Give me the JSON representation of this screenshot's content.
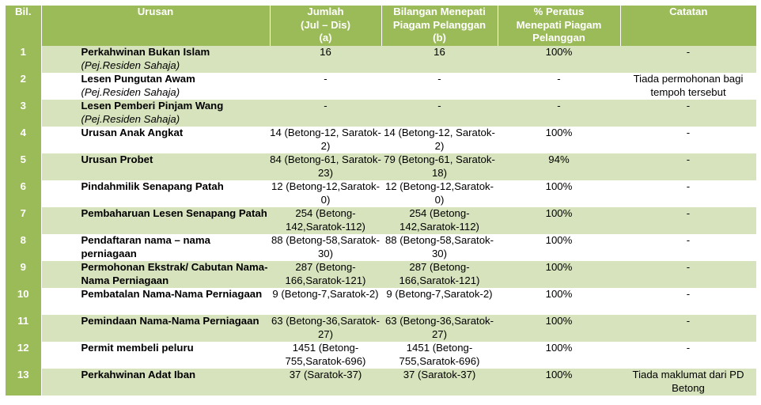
{
  "header": {
    "bil": "Bil.",
    "urusan": "Urusan",
    "jumlah": [
      "Jumlah",
      "(Jul – Dis)",
      "(a)"
    ],
    "bilangan": [
      "Bilangan Menepati",
      "Piagam Pelanggan",
      "(b)"
    ],
    "peratus": [
      "% Peratus",
      "Menepati Piagam",
      "Pelanggan"
    ],
    "catatan": "Catatan"
  },
  "rows": [
    {
      "bil": "1",
      "name": "Perkahwinan Bukan Islam",
      "sub": "(Pej.Residen Sahaja)",
      "jumlah": "16",
      "bilangan": "16",
      "peratus": "100%",
      "catatan": "-"
    },
    {
      "bil": "2",
      "name": "Lesen Pungutan Awam",
      "sub": "(Pej.Residen Sahaja)",
      "jumlah": "-",
      "bilangan": "-",
      "peratus": "-",
      "catatan": "Tiada permohonan bagi tempoh tersebut"
    },
    {
      "bil": "3",
      "name": "Lesen Pemberi Pinjam Wang",
      "sub": "(Pej.Residen Sahaja)",
      "jumlah": "-",
      "bilangan": "-",
      "peratus": "-",
      "catatan": "-"
    },
    {
      "bil": "4",
      "name": "Urusan Anak Angkat",
      "sub": "",
      "jumlah": "14 (Betong-12, Saratok-2)",
      "bilangan": "14 (Betong-12, Saratok-2)",
      "peratus": "100%",
      "catatan": "-"
    },
    {
      "bil": "5",
      "name": "Urusan Probet",
      "sub": "",
      "jumlah": "84 (Betong-61, Saratok-23)",
      "bilangan": "79 (Betong-61, Saratok-18)",
      "peratus": "94%",
      "catatan": "-"
    },
    {
      "bil": "6",
      "name": "Pindahmilik Senapang Patah",
      "sub": "",
      "jumlah": "12 (Betong-12,Saratok-0)",
      "bilangan": "12 (Betong-12,Saratok-0)",
      "peratus": "100%",
      "catatan": "-"
    },
    {
      "bil": "7",
      "name": "Pembaharuan Lesen Senapang Patah",
      "sub": "",
      "jumlah": "254 (Betong-142,Saratok-112)",
      "bilangan": "254 (Betong-142,Saratok-112)",
      "peratus": "100%",
      "catatan": "-"
    },
    {
      "bil": "8",
      "name": "Pendaftaran nama – nama perniagaan",
      "sub": "",
      "jumlah": "88 (Betong-58,Saratok-30)",
      "bilangan": "88 (Betong-58,Saratok-30)",
      "peratus": "100%",
      "catatan": "-"
    },
    {
      "bil": "9",
      "name": "Permohonan Ekstrak/ Cabutan Nama-Nama Perniagaan",
      "sub": "",
      "jumlah": "287 (Betong-166,Saratok-121)",
      "bilangan": "287 (Betong-166,Saratok-121)",
      "peratus": "100%",
      "catatan": "-"
    },
    {
      "bil": "10",
      "name": "Pembatalan Nama-Nama Perniagaan",
      "sub": "",
      "jumlah": "9 (Betong-7,Saratok-2)",
      "bilangan": "9 (Betong-7,Saratok-2)",
      "peratus": "100%",
      "catatan": "-"
    },
    {
      "bil": "11",
      "name": "Pemindaan Nama-Nama Perniagaan",
      "sub": "",
      "jumlah": "63 (Betong-36,Saratok-27)",
      "bilangan": "63 (Betong-36,Saratok-27)",
      "peratus": "100%",
      "catatan": "-"
    },
    {
      "bil": "12",
      "name": "Permit membeli peluru",
      "sub": "",
      "jumlah": "1451 (Betong-755,Saratok-696)",
      "bilangan": "1451 (Betong-755,Saratok-696)",
      "peratus": "100%",
      "catatan": "-"
    },
    {
      "bil": "13",
      "name": "Perkahwinan Adat Iban",
      "sub": "",
      "jumlah": "37 (Saratok-37)",
      "bilangan": "37 (Saratok-37)",
      "peratus": "100%",
      "catatan": "Tiada maklumat dari PD Betong"
    }
  ],
  "colors": {
    "header_green": "#9bbb59",
    "band_light": "#d7e3bc",
    "band_white": "#ffffff"
  }
}
